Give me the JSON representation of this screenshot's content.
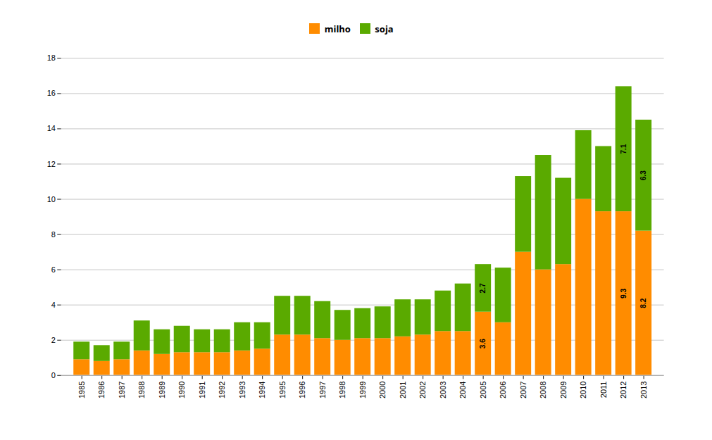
{
  "chart_data": {
    "type": "bar",
    "stacked": true,
    "categories": [
      "1985",
      "1986",
      "1987",
      "1988",
      "1989",
      "1990",
      "1991",
      "1992",
      "1993",
      "1994",
      "1995",
      "1996",
      "1997",
      "1998",
      "1999",
      "2000",
      "2001",
      "2002",
      "2003",
      "2004",
      "2005",
      "2006",
      "2007",
      "2008",
      "2009",
      "2010",
      "2011",
      "2012",
      "2013"
    ],
    "series": [
      {
        "name": "milho",
        "color": "#FF8C00",
        "values": [
          0.9,
          0.8,
          0.9,
          1.4,
          1.2,
          1.3,
          1.3,
          1.3,
          1.4,
          1.5,
          2.3,
          2.3,
          2.1,
          2.0,
          2.1,
          2.1,
          2.2,
          2.3,
          2.5,
          2.5,
          3.6,
          3.0,
          7.0,
          6.0,
          6.3,
          10.0,
          9.3,
          9.3,
          8.2
        ]
      },
      {
        "name": "soja",
        "color": "#5AAA00",
        "values": [
          1.0,
          0.9,
          1.0,
          1.7,
          1.4,
          1.5,
          1.3,
          1.3,
          1.6,
          1.5,
          2.2,
          2.2,
          2.1,
          1.7,
          1.7,
          1.8,
          2.1,
          2.0,
          2.3,
          2.7,
          2.7,
          3.1,
          4.3,
          6.5,
          4.9,
          3.9,
          3.7,
          7.1,
          6.3
        ]
      }
    ],
    "ylim": [
      0,
      18
    ],
    "yticks": [
      0,
      2,
      4,
      6,
      8,
      10,
      12,
      14,
      16,
      18
    ],
    "grid": true,
    "legend": "top",
    "annotations": [
      {
        "category": "2005",
        "series": "milho",
        "text": "3.6"
      },
      {
        "category": "2005",
        "series": "soja",
        "text": "2.7"
      },
      {
        "category": "2012",
        "series": "milho",
        "text": "9.3"
      },
      {
        "category": "2012",
        "series": "soja",
        "text": "7.1"
      },
      {
        "category": "2013",
        "series": "milho",
        "text": "8.2"
      },
      {
        "category": "2013",
        "series": "soja",
        "text": "6.3"
      }
    ]
  }
}
